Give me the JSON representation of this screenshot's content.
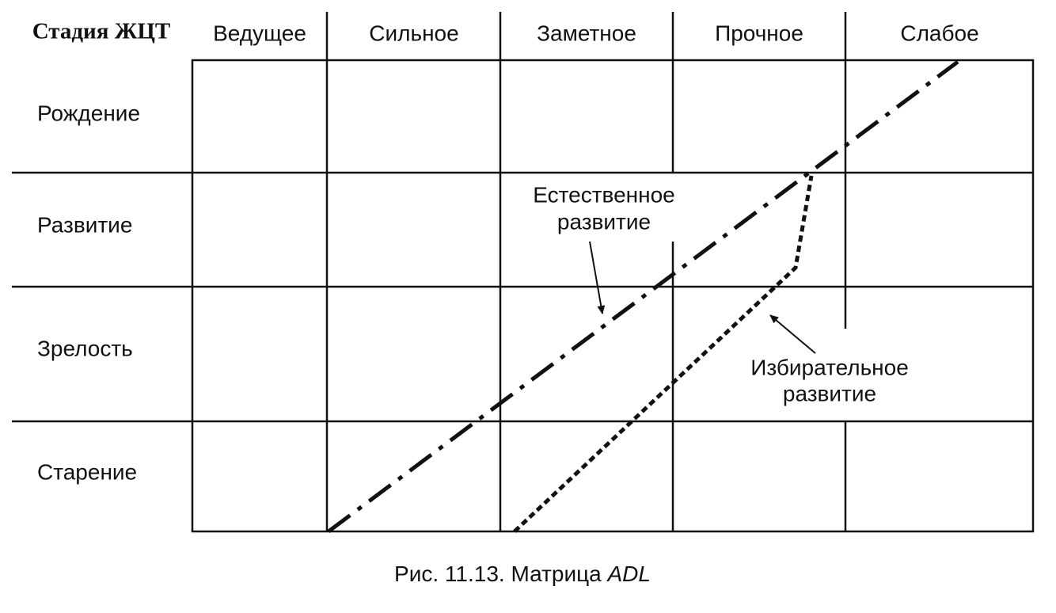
{
  "header": {
    "stage_label": "Стадия ЖЦТ",
    "columns": [
      "Ведущее",
      "Сильное",
      "Заметное",
      "Прочное",
      "Слабое"
    ]
  },
  "rows": [
    "Рождение",
    "Развитие",
    "Зрелость",
    "Старение"
  ],
  "annotations": [
    {
      "lines": [
        "Естественное",
        "развитие"
      ]
    },
    {
      "lines": [
        "Избирательное",
        "развитие"
      ]
    }
  ],
  "caption": {
    "text": "Рис. 11.13. Матрица",
    "emphasis": "ADL"
  }
}
